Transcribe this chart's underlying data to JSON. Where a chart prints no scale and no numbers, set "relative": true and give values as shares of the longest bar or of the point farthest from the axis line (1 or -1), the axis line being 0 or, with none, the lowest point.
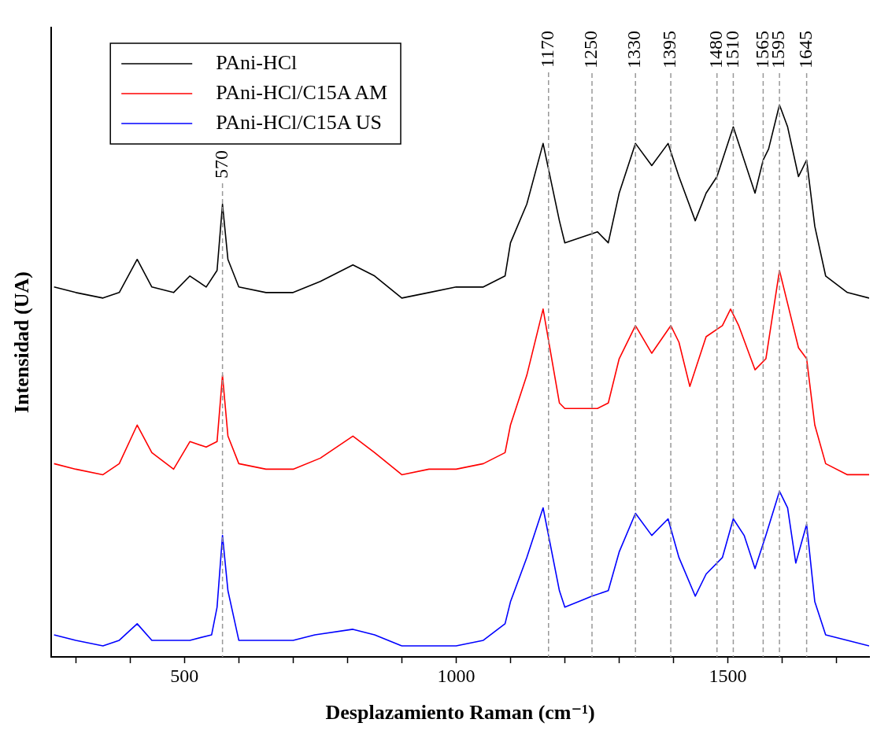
{
  "chart_data": {
    "type": "line",
    "relative": true,
    "xlabel": "Desplazamiento Raman (cm⁻¹)",
    "ylabel": "Intensidad (UA)",
    "xlim": [
      255,
      1760
    ],
    "xticks": [
      {
        "value": 300,
        "label": null
      },
      {
        "value": 400,
        "label": null
      },
      500,
      {
        "value": 600,
        "label": null
      },
      {
        "value": 700,
        "label": null
      },
      {
        "value": 800,
        "label": null
      },
      {
        "value": 900,
        "label": null
      },
      1000,
      {
        "value": 1100,
        "label": null
      },
      {
        "value": 1200,
        "label": null
      },
      {
        "value": 1300,
        "label": null
      },
      {
        "value": 1400,
        "label": null
      },
      1500,
      {
        "value": 1600,
        "label": null
      },
      {
        "value": 1700,
        "label": null
      }
    ],
    "tick_labels": "x",
    "grid": false,
    "legend": "top left",
    "marker": "none",
    "line_style": "solid",
    "series": [
      {
        "name": "PAni-HCl",
        "color": "#000000",
        "x": [
          260,
          300,
          350,
          380,
          413,
          440,
          480,
          510,
          540,
          560,
          570,
          580,
          600,
          650,
          700,
          750,
          810,
          850,
          900,
          950,
          1000,
          1050,
          1090,
          1100,
          1130,
          1160,
          1190,
          1200,
          1230,
          1260,
          1280,
          1300,
          1330,
          1360,
          1390,
          1410,
          1440,
          1460,
          1480,
          1510,
          1530,
          1550,
          1565,
          1575,
          1595,
          1610,
          1630,
          1645,
          1660,
          1680,
          1720,
          1760
        ],
        "values": [
          0.67,
          0.66,
          0.65,
          0.66,
          0.72,
          0.67,
          0.66,
          0.69,
          0.67,
          0.7,
          0.82,
          0.72,
          0.67,
          0.66,
          0.66,
          0.68,
          0.71,
          0.69,
          0.65,
          0.66,
          0.67,
          0.67,
          0.69,
          0.75,
          0.82,
          0.93,
          0.79,
          0.75,
          0.76,
          0.77,
          0.75,
          0.84,
          0.93,
          0.89,
          0.93,
          0.87,
          0.79,
          0.84,
          0.87,
          0.96,
          0.9,
          0.84,
          0.9,
          0.92,
          1.0,
          0.96,
          0.87,
          0.9,
          0.78,
          0.69,
          0.66,
          0.65
        ]
      },
      {
        "name": "PAni-HCl/C15A AM",
        "color": "#ff0000",
        "x": [
          260,
          300,
          350,
          380,
          413,
          440,
          480,
          510,
          540,
          560,
          570,
          580,
          600,
          650,
          700,
          750,
          810,
          850,
          900,
          950,
          1000,
          1050,
          1090,
          1100,
          1130,
          1160,
          1190,
          1200,
          1230,
          1260,
          1280,
          1300,
          1330,
          1360,
          1395,
          1410,
          1430,
          1460,
          1490,
          1505,
          1520,
          1550,
          1570,
          1595,
          1610,
          1630,
          1645,
          1660,
          1680,
          1720,
          1760
        ],
        "values": [
          0.35,
          0.34,
          0.33,
          0.35,
          0.42,
          0.37,
          0.34,
          0.39,
          0.38,
          0.39,
          0.51,
          0.4,
          0.35,
          0.34,
          0.34,
          0.36,
          0.4,
          0.37,
          0.33,
          0.34,
          0.34,
          0.35,
          0.37,
          0.42,
          0.51,
          0.63,
          0.46,
          0.45,
          0.45,
          0.45,
          0.46,
          0.54,
          0.6,
          0.55,
          0.6,
          0.57,
          0.49,
          0.58,
          0.6,
          0.63,
          0.6,
          0.52,
          0.54,
          0.7,
          0.64,
          0.56,
          0.54,
          0.42,
          0.35,
          0.33,
          0.33
        ]
      },
      {
        "name": "PAni-HCl/C15A US",
        "color": "#0000ff",
        "x": [
          260,
          300,
          350,
          380,
          413,
          440,
          480,
          510,
          550,
          560,
          570,
          580,
          600,
          650,
          700,
          740,
          810,
          850,
          900,
          950,
          1000,
          1050,
          1090,
          1100,
          1130,
          1160,
          1190,
          1200,
          1250,
          1280,
          1300,
          1330,
          1360,
          1390,
          1410,
          1440,
          1460,
          1490,
          1510,
          1530,
          1550,
          1570,
          1595,
          1610,
          1625,
          1645,
          1660,
          1680,
          1720,
          1760
        ],
        "values": [
          0.04,
          0.03,
          0.02,
          0.03,
          0.06,
          0.03,
          0.03,
          0.03,
          0.04,
          0.09,
          0.22,
          0.12,
          0.03,
          0.03,
          0.03,
          0.04,
          0.05,
          0.04,
          0.02,
          0.02,
          0.02,
          0.03,
          0.06,
          0.1,
          0.18,
          0.27,
          0.12,
          0.09,
          0.11,
          0.12,
          0.19,
          0.26,
          0.22,
          0.25,
          0.18,
          0.11,
          0.15,
          0.18,
          0.25,
          0.22,
          0.16,
          0.22,
          0.3,
          0.27,
          0.17,
          0.24,
          0.1,
          0.04,
          0.03,
          0.02
        ]
      }
    ],
    "ref_lines": [
      {
        "axis": "x",
        "value": 570,
        "label": "570",
        "color": "#999999",
        "line_style": "dashed"
      },
      {
        "axis": "x",
        "value": 1170,
        "label": "1170",
        "color": "#999999",
        "line_style": "dashed"
      },
      {
        "axis": "x",
        "value": 1250,
        "label": "1250",
        "color": "#999999",
        "line_style": "dashed"
      },
      {
        "axis": "x",
        "value": 1330,
        "label": "1330",
        "color": "#999999",
        "line_style": "dashed"
      },
      {
        "axis": "x",
        "value": 1395,
        "label": "1395",
        "color": "#999999",
        "line_style": "dashed"
      },
      {
        "axis": "x",
        "value": 1480,
        "label": "1480",
        "color": "#999999",
        "line_style": "dashed"
      },
      {
        "axis": "x",
        "value": 1510,
        "label": "1510",
        "color": "#999999",
        "line_style": "dashed"
      },
      {
        "axis": "x",
        "value": 1565,
        "label": "1565",
        "color": "#999999",
        "line_style": "dashed"
      },
      {
        "axis": "x",
        "value": 1595,
        "label": "1595",
        "color": "#999999",
        "line_style": "dashed"
      },
      {
        "axis": "x",
        "value": 1645,
        "label": "1645",
        "color": "#999999",
        "line_style": "dashed"
      }
    ]
  }
}
